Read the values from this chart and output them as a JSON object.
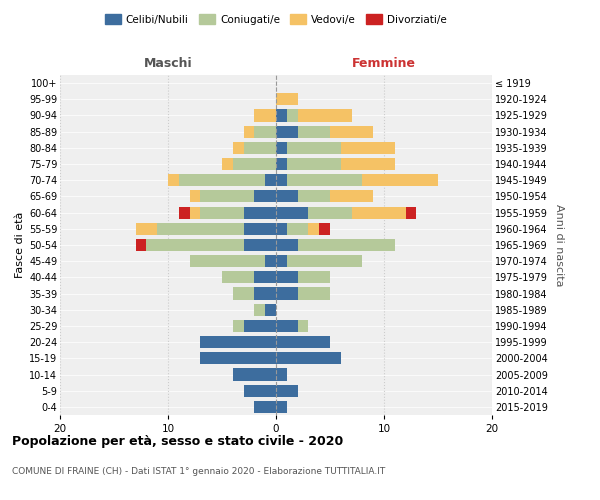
{
  "age_groups": [
    "0-4",
    "5-9",
    "10-14",
    "15-19",
    "20-24",
    "25-29",
    "30-34",
    "35-39",
    "40-44",
    "45-49",
    "50-54",
    "55-59",
    "60-64",
    "65-69",
    "70-74",
    "75-79",
    "80-84",
    "85-89",
    "90-94",
    "95-99",
    "100+"
  ],
  "birth_years": [
    "2015-2019",
    "2010-2014",
    "2005-2009",
    "2000-2004",
    "1995-1999",
    "1990-1994",
    "1985-1989",
    "1980-1984",
    "1975-1979",
    "1970-1974",
    "1965-1969",
    "1960-1964",
    "1955-1959",
    "1950-1954",
    "1945-1949",
    "1940-1944",
    "1935-1939",
    "1930-1934",
    "1925-1929",
    "1920-1924",
    "≤ 1919"
  ],
  "colors": {
    "celibi": "#3d6d9e",
    "coniugati": "#b5c99a",
    "vedovi": "#f5c265",
    "divorziati": "#cc2222"
  },
  "maschi": {
    "celibi": [
      2,
      3,
      4,
      7,
      7,
      3,
      1,
      2,
      2,
      1,
      3,
      3,
      3,
      2,
      1,
      0,
      0,
      0,
      0,
      0,
      0
    ],
    "coniugati": [
      0,
      0,
      0,
      0,
      0,
      1,
      1,
      2,
      3,
      7,
      9,
      8,
      4,
      5,
      8,
      4,
      3,
      2,
      0,
      0,
      0
    ],
    "vedovi": [
      0,
      0,
      0,
      0,
      0,
      0,
      0,
      0,
      0,
      0,
      0,
      2,
      1,
      1,
      1,
      1,
      1,
      1,
      2,
      0,
      0
    ],
    "divorziati": [
      0,
      0,
      0,
      0,
      0,
      0,
      0,
      0,
      0,
      0,
      1,
      0,
      1,
      0,
      0,
      0,
      0,
      0,
      0,
      0,
      0
    ]
  },
  "femmine": {
    "celibi": [
      1,
      2,
      1,
      6,
      5,
      2,
      0,
      2,
      2,
      1,
      2,
      1,
      3,
      2,
      1,
      1,
      1,
      2,
      1,
      0,
      0
    ],
    "coniugati": [
      0,
      0,
      0,
      0,
      0,
      1,
      0,
      3,
      3,
      7,
      9,
      2,
      4,
      3,
      7,
      5,
      5,
      3,
      1,
      0,
      0
    ],
    "vedovi": [
      0,
      0,
      0,
      0,
      0,
      0,
      0,
      0,
      0,
      0,
      0,
      1,
      5,
      4,
      7,
      5,
      5,
      4,
      5,
      2,
      0
    ],
    "divorziati": [
      0,
      0,
      0,
      0,
      0,
      0,
      0,
      0,
      0,
      0,
      0,
      1,
      1,
      0,
      0,
      0,
      0,
      0,
      0,
      0,
      0
    ]
  },
  "title": "Popolazione per età, sesso e stato civile - 2020",
  "subtitle": "COMUNE DI FRAINE (CH) - Dati ISTAT 1° gennaio 2020 - Elaborazione TUTTITALIA.IT",
  "xlabel_left": "Maschi",
  "xlabel_right": "Femmine",
  "ylabel_left": "Fasce di età",
  "ylabel_right": "Anni di nascita",
  "xlim": 20,
  "legend_labels": [
    "Celibi/Nubili",
    "Coniugati/e",
    "Vedovi/e",
    "Divorziati/e"
  ],
  "bg_color": "#efefef",
  "bar_height": 0.75
}
